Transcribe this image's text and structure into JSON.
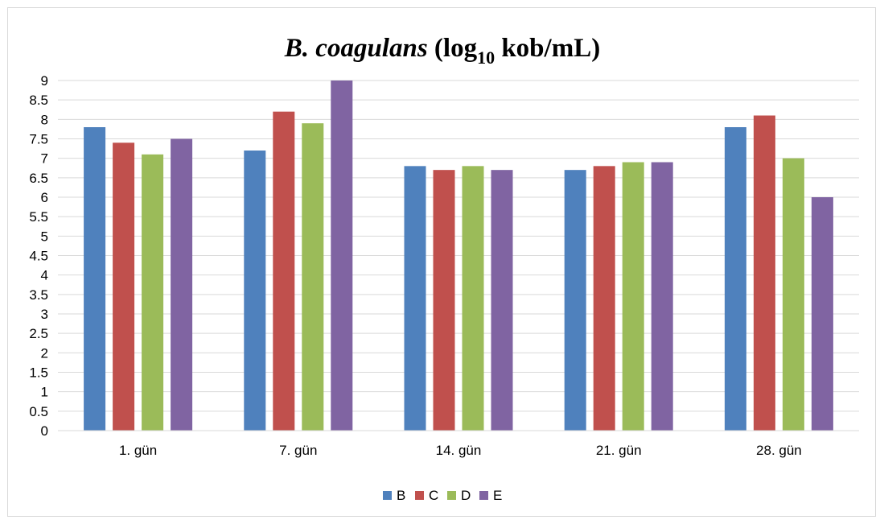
{
  "chart_data": {
    "type": "bar",
    "title": {
      "italic_part": "B. coagulans",
      "prefix": " (log",
      "subscript": "10",
      "suffix": " kob/mL)"
    },
    "xlabel": "",
    "ylabel": "",
    "categories": [
      "1. gün",
      "7. gün",
      "14. gün",
      "21. gün",
      "28. gün"
    ],
    "series": [
      {
        "name": "B",
        "color": "#4f81bd",
        "values": [
          7.8,
          7.2,
          6.8,
          6.7,
          7.8
        ]
      },
      {
        "name": "C",
        "color": "#c0504d",
        "values": [
          7.4,
          8.2,
          6.7,
          6.8,
          8.1
        ]
      },
      {
        "name": "D",
        "color": "#9bbb59",
        "values": [
          7.1,
          7.9,
          6.8,
          6.9,
          7.0
        ]
      },
      {
        "name": "E",
        "color": "#8064a2",
        "values": [
          7.5,
          9.0,
          6.7,
          6.9,
          6.0
        ]
      }
    ],
    "ylim": [
      0,
      9
    ],
    "ytick_step": 0.5,
    "grid": true,
    "legend_position": "bottom"
  }
}
